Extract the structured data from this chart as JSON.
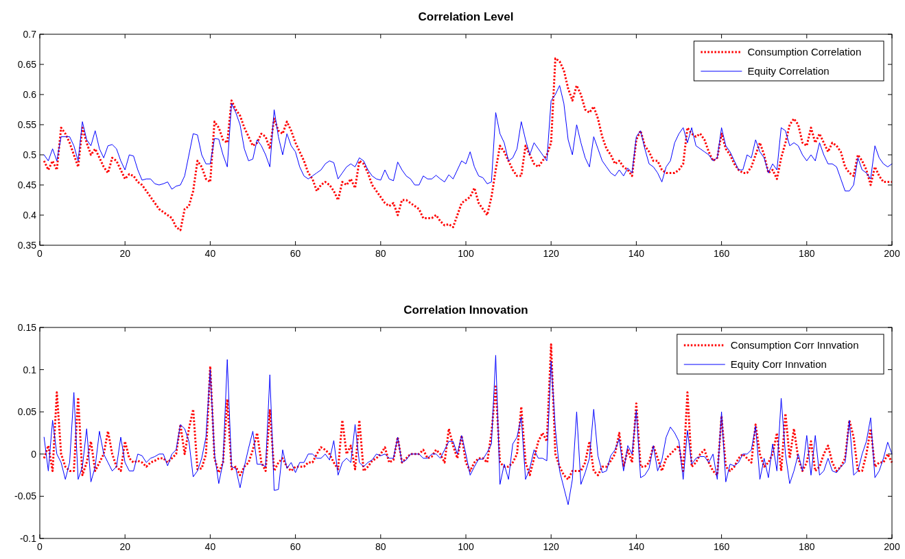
{
  "chart_data": [
    {
      "type": "line",
      "title": "Correlation Level",
      "xlim": [
        0,
        200
      ],
      "xticks": [
        0,
        20,
        40,
        60,
        80,
        100,
        120,
        140,
        160,
        180,
        200
      ],
      "ylim": [
        0.35,
        0.7
      ],
      "yticks": [
        0.35,
        0.4,
        0.45,
        0.5,
        0.55,
        0.6,
        0.65,
        0.7
      ],
      "legend": "top right",
      "grid": false,
      "x": [
        1,
        2,
        3,
        4,
        5,
        6,
        7,
        8,
        9,
        10,
        11,
        12,
        13,
        14,
        15,
        16,
        17,
        18,
        19,
        20,
        21,
        22,
        23,
        24,
        25,
        26,
        27,
        28,
        29,
        30,
        31,
        32,
        33,
        34,
        35,
        36,
        37,
        38,
        39,
        40,
        41,
        42,
        43,
        44,
        45,
        46,
        47,
        48,
        49,
        50,
        51,
        52,
        53,
        54,
        55,
        56,
        57,
        58,
        59,
        60,
        61,
        62,
        63,
        64,
        65,
        66,
        67,
        68,
        69,
        70,
        71,
        72,
        73,
        74,
        75,
        76,
        77,
        78,
        79,
        80,
        81,
        82,
        83,
        84,
        85,
        86,
        87,
        88,
        89,
        90,
        91,
        92,
        93,
        94,
        95,
        96,
        97,
        98,
        99,
        100,
        101,
        102,
        103,
        104,
        105,
        106,
        107,
        108,
        109,
        110,
        111,
        112,
        113,
        114,
        115,
        116,
        117,
        118,
        119,
        120,
        121,
        122,
        123,
        124,
        125,
        126,
        127,
        128,
        129,
        130,
        131,
        132,
        133,
        134,
        135,
        136,
        137,
        138,
        139,
        140,
        141,
        142,
        143,
        144,
        145,
        146,
        147,
        148,
        149,
        150,
        151,
        152,
        153,
        154,
        155,
        156,
        157,
        158,
        159,
        160,
        161,
        162,
        163,
        164,
        165,
        166,
        167,
        168,
        169,
        170,
        171,
        172,
        173,
        174,
        175,
        176,
        177,
        178,
        179,
        180,
        181,
        182,
        183,
        184,
        185,
        186,
        187,
        188,
        189,
        190,
        191,
        192,
        193,
        194,
        195,
        196,
        197,
        198,
        199,
        200
      ],
      "series": [
        {
          "name": "Consumption Correlation",
          "color": "#ff0000",
          "line_style": "dotted",
          "values": [
            0.49,
            0.475,
            0.49,
            0.475,
            0.545,
            0.535,
            0.52,
            0.5,
            0.48,
            0.545,
            0.52,
            0.5,
            0.51,
            0.495,
            0.48,
            0.47,
            0.495,
            0.49,
            0.475,
            0.46,
            0.468,
            0.465,
            0.455,
            0.45,
            0.44,
            0.43,
            0.42,
            0.41,
            0.405,
            0.4,
            0.395,
            0.38,
            0.375,
            0.41,
            0.415,
            0.44,
            0.49,
            0.48,
            0.46,
            0.455,
            0.555,
            0.545,
            0.525,
            0.52,
            0.59,
            0.575,
            0.565,
            0.545,
            0.53,
            0.515,
            0.52,
            0.535,
            0.53,
            0.51,
            0.56,
            0.54,
            0.535,
            0.555,
            0.54,
            0.52,
            0.505,
            0.49,
            0.47,
            0.46,
            0.44,
            0.45,
            0.455,
            0.45,
            0.44,
            0.425,
            0.455,
            0.45,
            0.46,
            0.445,
            0.49,
            0.485,
            0.47,
            0.45,
            0.44,
            0.43,
            0.42,
            0.415,
            0.42,
            0.4,
            0.425,
            0.425,
            0.42,
            0.415,
            0.41,
            0.395,
            0.395,
            0.395,
            0.4,
            0.39,
            0.383,
            0.385,
            0.38,
            0.4,
            0.42,
            0.425,
            0.43,
            0.445,
            0.42,
            0.41,
            0.4,
            0.43,
            0.475,
            0.515,
            0.505,
            0.49,
            0.475,
            0.465,
            0.465,
            0.515,
            0.5,
            0.485,
            0.48,
            0.49,
            0.5,
            0.52,
            0.66,
            0.655,
            0.64,
            0.61,
            0.59,
            0.615,
            0.6,
            0.575,
            0.57,
            0.58,
            0.56,
            0.53,
            0.51,
            0.5,
            0.485,
            0.49,
            0.48,
            0.475,
            0.465,
            0.525,
            0.54,
            0.515,
            0.505,
            0.49,
            0.49,
            0.475,
            0.47,
            0.47,
            0.47,
            0.475,
            0.485,
            0.545,
            0.535,
            0.53,
            0.535,
            0.525,
            0.505,
            0.49,
            0.495,
            0.535,
            0.51,
            0.5,
            0.485,
            0.475,
            0.47,
            0.47,
            0.48,
            0.5,
            0.52,
            0.5,
            0.47,
            0.475,
            0.46,
            0.495,
            0.52,
            0.55,
            0.56,
            0.55,
            0.52,
            0.515,
            0.545,
            0.52,
            0.535,
            0.52,
            0.505,
            0.52,
            0.515,
            0.505,
            0.48,
            0.47,
            0.465,
            0.5,
            0.49,
            0.475,
            0.45,
            0.48,
            0.465,
            0.455,
            0.455,
            0.455
          ]
        },
        {
          "name": "Equity Correlation",
          "color": "#0000ff",
          "line_style": "solid",
          "values": [
            0.5,
            0.49,
            0.51,
            0.49,
            0.53,
            0.53,
            0.53,
            0.515,
            0.49,
            0.555,
            0.525,
            0.515,
            0.54,
            0.51,
            0.495,
            0.515,
            0.517,
            0.51,
            0.49,
            0.475,
            0.5,
            0.498,
            0.475,
            0.458,
            0.46,
            0.46,
            0.452,
            0.45,
            0.452,
            0.455,
            0.443,
            0.448,
            0.45,
            0.465,
            0.5,
            0.535,
            0.533,
            0.5,
            0.485,
            0.485,
            0.527,
            0.526,
            0.5,
            0.48,
            0.585,
            0.57,
            0.55,
            0.51,
            0.49,
            0.493,
            0.525,
            0.515,
            0.5,
            0.48,
            0.575,
            0.53,
            0.5,
            0.535,
            0.515,
            0.505,
            0.48,
            0.465,
            0.46,
            0.465,
            0.47,
            0.475,
            0.485,
            0.49,
            0.487,
            0.46,
            0.47,
            0.48,
            0.485,
            0.48,
            0.495,
            0.49,
            0.475,
            0.465,
            0.46,
            0.458,
            0.475,
            0.46,
            0.457,
            0.488,
            0.475,
            0.465,
            0.46,
            0.45,
            0.45,
            0.465,
            0.46,
            0.46,
            0.466,
            0.46,
            0.455,
            0.467,
            0.46,
            0.475,
            0.49,
            0.485,
            0.505,
            0.48,
            0.465,
            0.462,
            0.452,
            0.455,
            0.57,
            0.535,
            0.52,
            0.49,
            0.495,
            0.51,
            0.555,
            0.525,
            0.5,
            0.52,
            0.51,
            0.5,
            0.49,
            0.59,
            0.6,
            0.615,
            0.585,
            0.525,
            0.5,
            0.55,
            0.52,
            0.495,
            0.48,
            0.53,
            0.51,
            0.49,
            0.48,
            0.47,
            0.465,
            0.475,
            0.465,
            0.478,
            0.47,
            0.53,
            0.54,
            0.51,
            0.485,
            0.48,
            0.47,
            0.455,
            0.48,
            0.49,
            0.52,
            0.535,
            0.545,
            0.52,
            0.545,
            0.515,
            0.51,
            0.505,
            0.5,
            0.49,
            0.495,
            0.545,
            0.515,
            0.505,
            0.49,
            0.475,
            0.475,
            0.5,
            0.495,
            0.525,
            0.505,
            0.495,
            0.47,
            0.485,
            0.475,
            0.545,
            0.54,
            0.515,
            0.52,
            0.515,
            0.5,
            0.49,
            0.5,
            0.49,
            0.52,
            0.5,
            0.485,
            0.485,
            0.48,
            0.46,
            0.44,
            0.44,
            0.45,
            0.495,
            0.475,
            0.47,
            0.46,
            0.515,
            0.495,
            0.485,
            0.48,
            0.485
          ]
        }
      ]
    },
    {
      "type": "line",
      "title": "Correlation Innovation",
      "xlim": [
        0,
        200
      ],
      "xticks": [
        0,
        20,
        40,
        60,
        80,
        100,
        120,
        140,
        160,
        180,
        200
      ],
      "ylim": [
        -0.1,
        0.15
      ],
      "yticks": [
        -0.1,
        -0.05,
        0,
        0.05,
        0.1,
        0.15
      ],
      "legend": "top right",
      "grid": false,
      "x": [
        1,
        2,
        3,
        4,
        5,
        6,
        7,
        8,
        9,
        10,
        11,
        12,
        13,
        14,
        15,
        16,
        17,
        18,
        19,
        20,
        21,
        22,
        23,
        24,
        25,
        26,
        27,
        28,
        29,
        30,
        31,
        32,
        33,
        34,
        35,
        36,
        37,
        38,
        39,
        40,
        41,
        42,
        43,
        44,
        45,
        46,
        47,
        48,
        49,
        50,
        51,
        52,
        53,
        54,
        55,
        56,
        57,
        58,
        59,
        60,
        61,
        62,
        63,
        64,
        65,
        66,
        67,
        68,
        69,
        70,
        71,
        72,
        73,
        74,
        75,
        76,
        77,
        78,
        79,
        80,
        81,
        82,
        83,
        84,
        85,
        86,
        87,
        88,
        89,
        90,
        91,
        92,
        93,
        94,
        95,
        96,
        97,
        98,
        99,
        100,
        101,
        102,
        103,
        104,
        105,
        106,
        107,
        108,
        109,
        110,
        111,
        112,
        113,
        114,
        115,
        116,
        117,
        118,
        119,
        120,
        121,
        122,
        123,
        124,
        125,
        126,
        127,
        128,
        129,
        130,
        131,
        132,
        133,
        134,
        135,
        136,
        137,
        138,
        139,
        140,
        141,
        142,
        143,
        144,
        145,
        146,
        147,
        148,
        149,
        150,
        151,
        152,
        153,
        154,
        155,
        156,
        157,
        158,
        159,
        160,
        161,
        162,
        163,
        164,
        165,
        166,
        167,
        168,
        169,
        170,
        171,
        172,
        173,
        174,
        175,
        176,
        177,
        178,
        179,
        180,
        181,
        182,
        183,
        184,
        185,
        186,
        187,
        188,
        189,
        190,
        191,
        192,
        193,
        194,
        195,
        196,
        197,
        198,
        199,
        200
      ],
      "series": [
        {
          "name": "Consumption Corr Innvation",
          "color": "#ff0000",
          "line_style": "dotted",
          "values": [
            -0.005,
            0.01,
            -0.02,
            0.073,
            0.0,
            -0.015,
            -0.02,
            -0.02,
            0.067,
            -0.025,
            -0.01,
            0.015,
            -0.02,
            -0.01,
            0.0,
            0.027,
            0.0,
            -0.015,
            -0.02,
            0.015,
            -0.005,
            -0.01,
            -0.008,
            -0.01,
            -0.015,
            -0.01,
            -0.008,
            -0.005,
            -0.005,
            -0.01,
            -0.005,
            0.0,
            0.035,
            0.0,
            0.03,
            0.053,
            -0.018,
            -0.017,
            0.0,
            0.104,
            -0.005,
            -0.022,
            -0.01,
            0.065,
            -0.018,
            -0.015,
            -0.025,
            -0.015,
            -0.01,
            0.005,
            0.025,
            -0.01,
            -0.02,
            0.052,
            -0.02,
            -0.01,
            -0.005,
            -0.015,
            -0.02,
            -0.015,
            -0.015,
            -0.015,
            -0.01,
            -0.01,
            0.0,
            0.008,
            0.005,
            0.0,
            -0.01,
            -0.018,
            0.04,
            0.0,
            0.01,
            -0.018,
            0.04,
            -0.02,
            -0.015,
            -0.008,
            -0.005,
            0.0,
            0.008,
            -0.01,
            -0.007,
            0.02,
            -0.01,
            -0.005,
            0.0,
            0.0,
            0.0,
            0.005,
            -0.005,
            -0.003,
            0.005,
            0.0,
            -0.01,
            0.03,
            0.01,
            -0.005,
            0.022,
            -0.01,
            -0.02,
            -0.01,
            -0.005,
            -0.005,
            -0.01,
            0.025,
            0.08,
            -0.01,
            -0.015,
            -0.015,
            -0.01,
            0.0,
            0.056,
            -0.01,
            -0.025,
            -0.005,
            0.015,
            0.025,
            0.015,
            0.13,
            0.0,
            -0.015,
            -0.025,
            -0.03,
            -0.02,
            -0.02,
            -0.02,
            -0.01,
            0.015,
            -0.02,
            -0.025,
            -0.015,
            -0.015,
            -0.008,
            0.0,
            0.025,
            -0.015,
            0.005,
            -0.01,
            0.06,
            -0.015,
            -0.015,
            -0.01,
            0.01,
            -0.005,
            -0.02,
            -0.005,
            0.0,
            0.005,
            0.01,
            -0.02,
            0.073,
            -0.015,
            -0.01,
            0.0,
            0.005,
            -0.01,
            -0.02,
            -0.025,
            0.045,
            -0.015,
            -0.02,
            -0.015,
            -0.005,
            0.0,
            -0.005,
            -0.01,
            0.035,
            0.0,
            -0.015,
            -0.01,
            0.0,
            0.025,
            -0.02,
            0.048,
            -0.005,
            0.03,
            -0.005,
            -0.02,
            -0.01,
            0.015,
            -0.02,
            -0.015,
            0.0,
            0.01,
            -0.01,
            -0.02,
            -0.015,
            -0.005,
            0.04,
            0.02,
            -0.02,
            -0.02,
            0.0,
            0.03,
            -0.015,
            -0.01,
            -0.01,
            0.0,
            -0.01
          ]
        },
        {
          "name": "Equity Corr Innvation",
          "color": "#0000ff",
          "line_style": "solid",
          "values": [
            0.02,
            -0.02,
            0.04,
            0.0,
            -0.01,
            -0.03,
            -0.01,
            0.073,
            -0.03,
            -0.015,
            0.03,
            -0.033,
            -0.015,
            0.027,
            0.0,
            -0.01,
            -0.02,
            -0.015,
            0.02,
            -0.01,
            -0.02,
            -0.02,
            0.0,
            -0.002,
            -0.01,
            -0.005,
            -0.003,
            0.0,
            0.0,
            -0.014,
            0.0,
            0.005,
            0.035,
            0.03,
            0.015,
            -0.027,
            -0.02,
            -0.005,
            0.02,
            0.1,
            0.0,
            -0.035,
            -0.01,
            0.112,
            -0.015,
            -0.017,
            -0.04,
            -0.015,
            0.007,
            0.027,
            -0.012,
            -0.012,
            -0.015,
            0.094,
            -0.043,
            -0.042,
            0.005,
            -0.017,
            -0.01,
            -0.022,
            -0.01,
            -0.01,
            0.0,
            0.0,
            -0.005,
            -0.005,
            0.0,
            -0.007,
            0.016,
            -0.025,
            -0.01,
            -0.005,
            -0.01,
            0.035,
            -0.01,
            -0.015,
            -0.01,
            -0.007,
            0.0,
            -0.002,
            0.0,
            -0.005,
            -0.005,
            0.02,
            -0.01,
            -0.007,
            0.0,
            0.0,
            0.0,
            -0.005,
            -0.005,
            0.0,
            0.0,
            -0.005,
            0.005,
            0.015,
            0.015,
            0.0,
            0.022,
            0.0,
            -0.025,
            -0.015,
            -0.006,
            -0.006,
            0.002,
            0.012,
            0.117,
            -0.036,
            -0.012,
            -0.03,
            0.012,
            0.02,
            0.044,
            -0.03,
            -0.017,
            0.005,
            -0.005,
            -0.005,
            -0.008,
            0.11,
            0.03,
            -0.02,
            -0.04,
            -0.06,
            -0.03,
            0.05,
            -0.036,
            -0.022,
            -0.005,
            0.053,
            -0.002,
            -0.022,
            -0.02,
            -0.002,
            0.005,
            0.018,
            -0.02,
            0.01,
            0.0,
            0.052,
            -0.028,
            -0.025,
            -0.017,
            0.01,
            -0.02,
            -0.007,
            0.02,
            0.032,
            0.025,
            0.015,
            -0.03,
            0.028,
            -0.012,
            -0.005,
            -0.003,
            -0.003,
            -0.01,
            0.0,
            -0.03,
            0.05,
            -0.033,
            -0.012,
            -0.014,
            -0.01,
            0.0,
            0.0,
            0.005,
            0.033,
            -0.03,
            -0.005,
            -0.028,
            0.012,
            -0.02,
            0.066,
            0.0,
            -0.035,
            -0.02,
            0.0,
            -0.02,
            0.022,
            -0.025,
            0.022,
            -0.025,
            -0.02,
            -0.005,
            -0.02,
            -0.022,
            -0.015,
            -0.01,
            0.04,
            -0.025,
            -0.02,
            0.0,
            0.015,
            0.043,
            -0.028,
            -0.02,
            -0.005,
            0.014,
            0.0
          ]
        }
      ]
    }
  ]
}
